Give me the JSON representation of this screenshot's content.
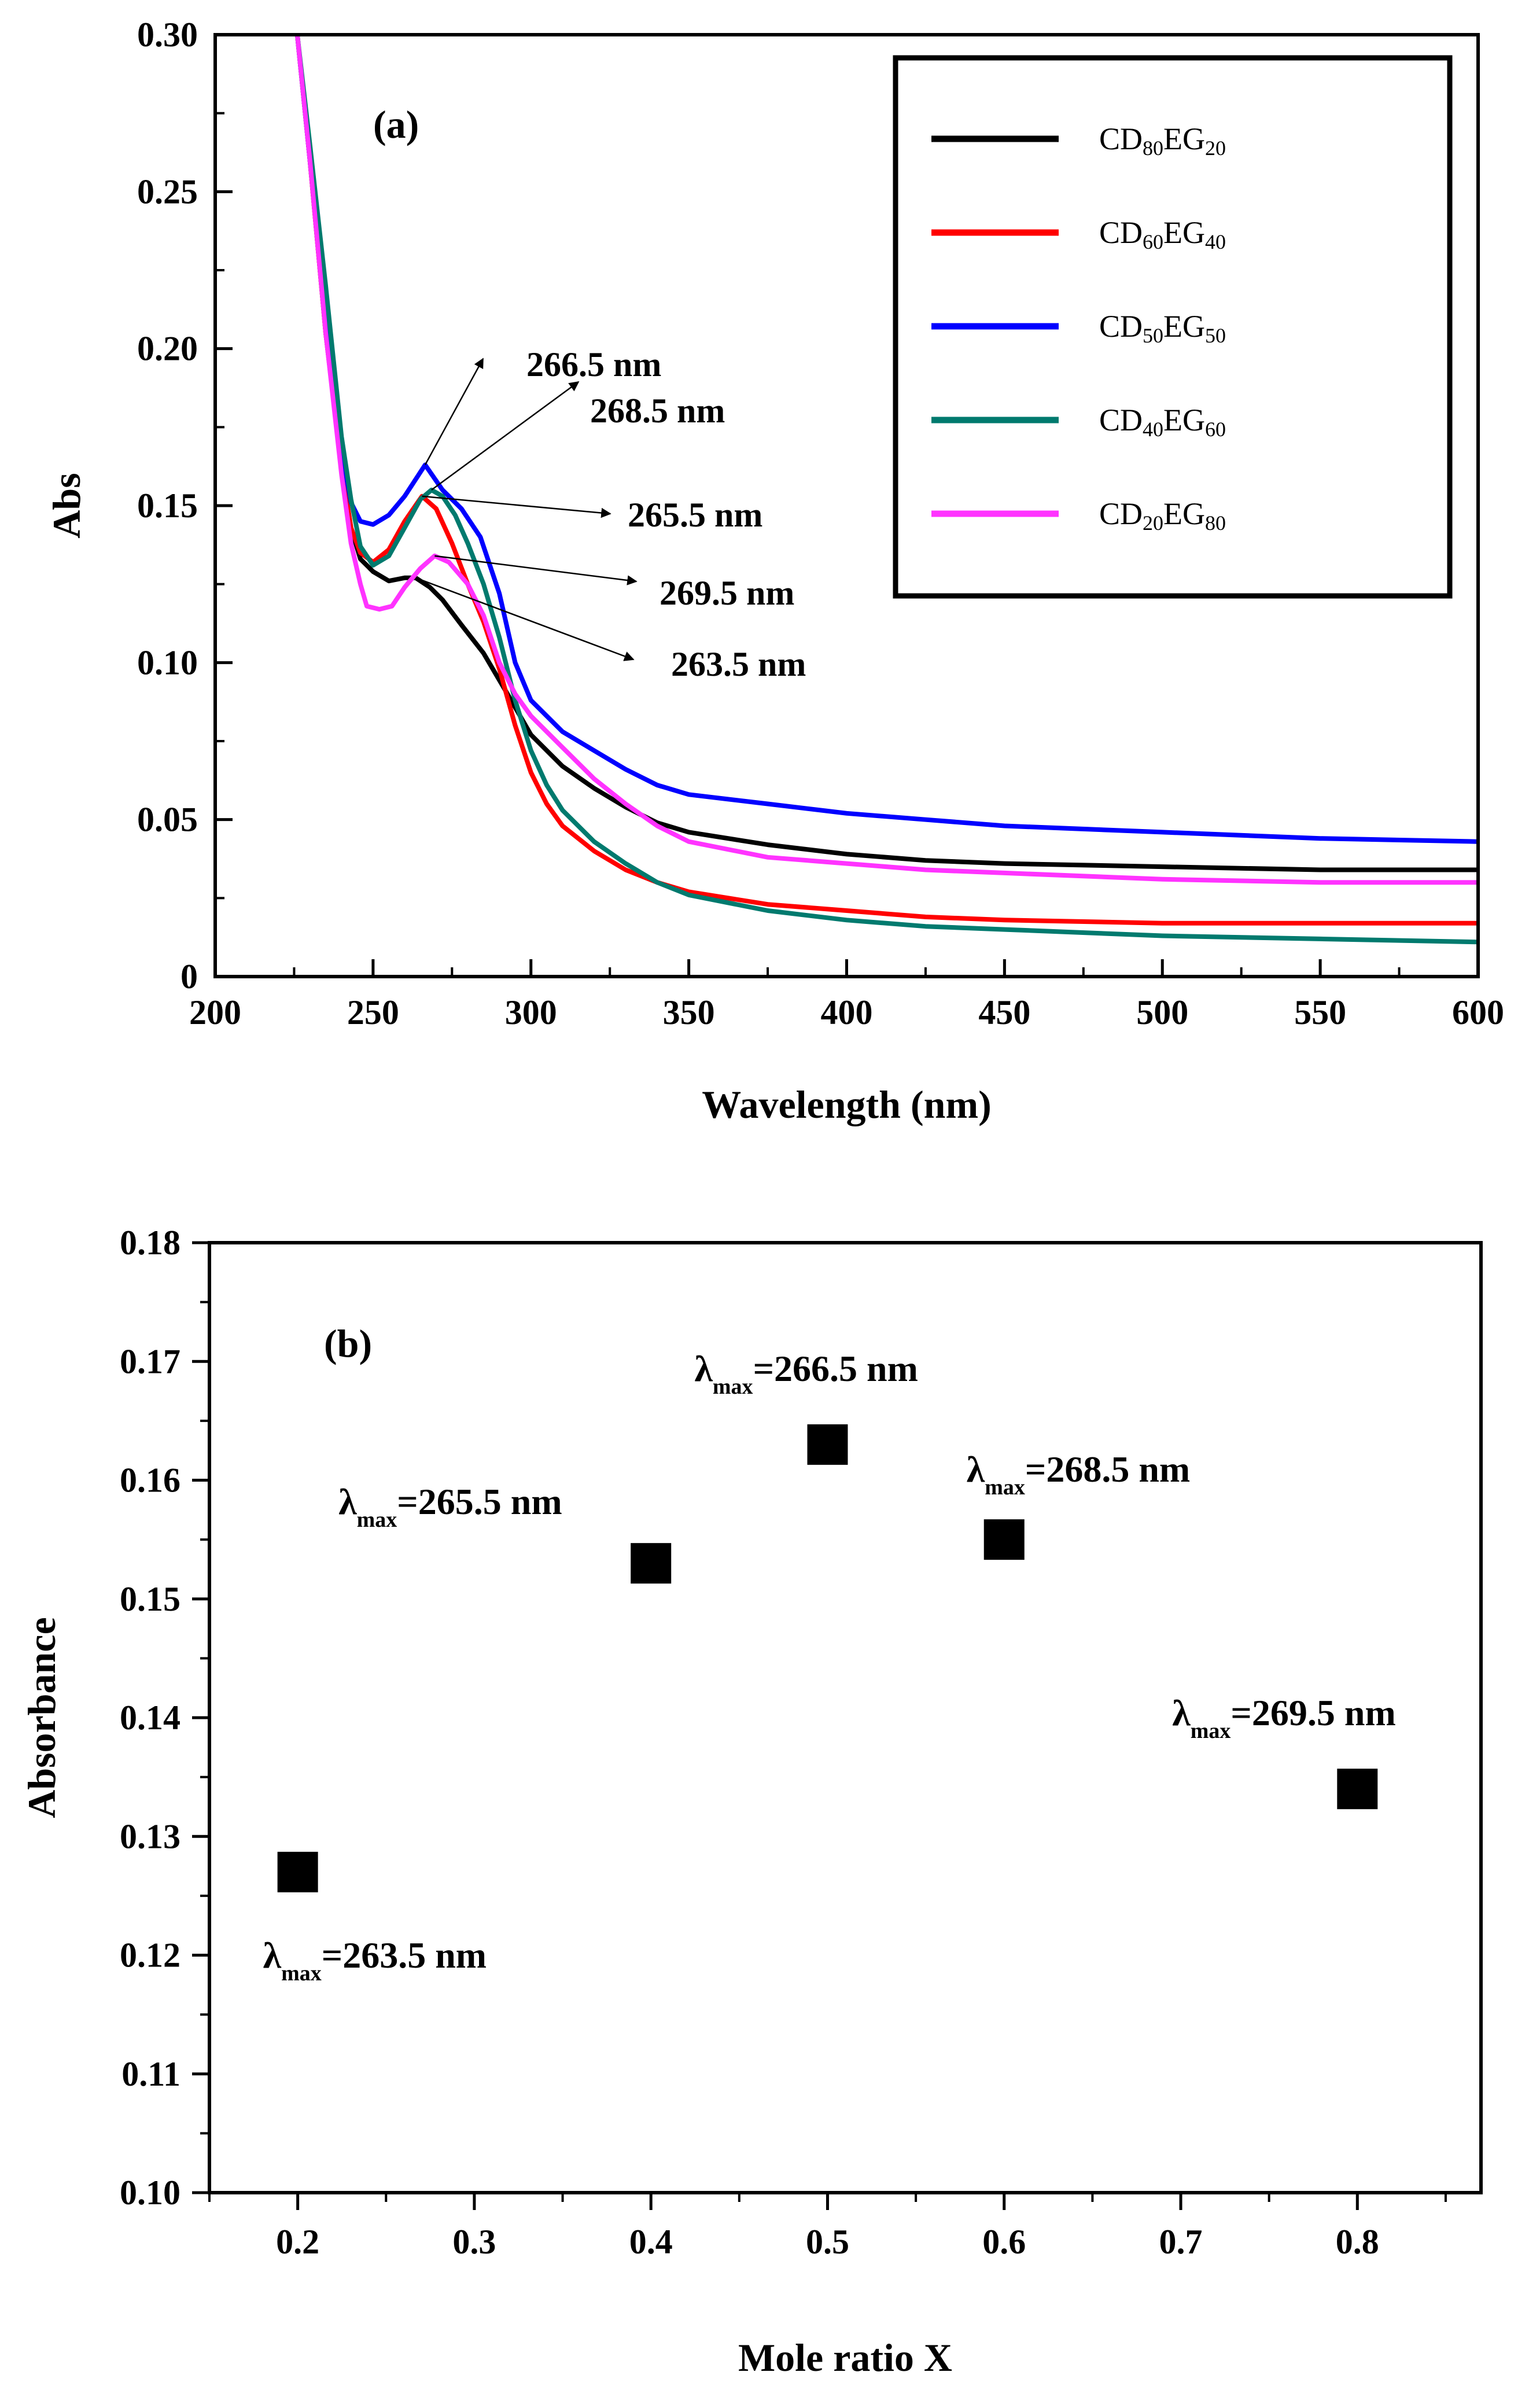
{
  "chart_data": [
    {
      "type": "line",
      "panel_label": "(a)",
      "xlabel": "Wavelength (nm)",
      "ylabel": "Abs",
      "xlim": [
        200,
        600
      ],
      "ylim": [
        0,
        0.3
      ],
      "x_ticks": [
        "200",
        "250",
        "300",
        "350",
        "400",
        "450",
        "500",
        "550",
        "600"
      ],
      "y_ticks": [
        "0",
        "0.05",
        "0.10",
        "0.15",
        "0.20",
        "0.25",
        "0.30"
      ],
      "grid": false,
      "legend_position": "top-right",
      "series": [
        {
          "name": "CD80EG20",
          "base": "CD",
          "sub1": "80",
          "mid": "EG",
          "sub2": "20",
          "color": "#000000",
          "x": [
            226,
            230,
            235,
            240,
            243,
            246,
            250,
            255,
            260,
            263.5,
            268,
            272,
            278,
            285,
            292,
            300,
            310,
            320,
            330,
            340,
            350,
            375,
            400,
            425,
            450,
            500,
            550,
            600
          ],
          "y": [
            0.3,
            0.26,
            0.205,
            0.162,
            0.143,
            0.133,
            0.129,
            0.126,
            0.127,
            0.127,
            0.124,
            0.12,
            0.112,
            0.103,
            0.091,
            0.077,
            0.067,
            0.06,
            0.054,
            0.049,
            0.046,
            0.042,
            0.039,
            0.037,
            0.036,
            0.035,
            0.034,
            0.034
          ]
        },
        {
          "name": "CD60EG40",
          "base": "CD",
          "sub1": "60",
          "mid": "EG",
          "sub2": "40",
          "color": "#ff0000",
          "x": [
            226,
            230,
            235,
            240,
            243,
            246,
            250,
            255,
            260,
            265.5,
            270,
            275,
            280,
            285,
            290,
            295,
            300,
            305,
            310,
            320,
            330,
            340,
            350,
            375,
            400,
            425,
            450,
            500,
            550,
            600
          ],
          "y": [
            0.3,
            0.26,
            0.205,
            0.162,
            0.143,
            0.135,
            0.132,
            0.136,
            0.145,
            0.153,
            0.149,
            0.138,
            0.125,
            0.113,
            0.098,
            0.08,
            0.065,
            0.055,
            0.048,
            0.04,
            0.034,
            0.03,
            0.027,
            0.023,
            0.021,
            0.019,
            0.018,
            0.017,
            0.017,
            0.017
          ]
        },
        {
          "name": "CD50EG50",
          "base": "CD",
          "sub1": "50",
          "mid": "EG",
          "sub2": "50",
          "color": "#0000ff",
          "x": [
            226,
            230,
            235,
            240,
            243,
            246,
            250,
            255,
            260,
            266.5,
            272,
            278,
            284,
            290,
            295,
            300,
            310,
            320,
            330,
            340,
            350,
            375,
            400,
            425,
            450,
            500,
            550,
            600
          ],
          "y": [
            0.3,
            0.26,
            0.21,
            0.168,
            0.151,
            0.145,
            0.144,
            0.147,
            0.153,
            0.163,
            0.155,
            0.149,
            0.14,
            0.122,
            0.1,
            0.088,
            0.078,
            0.072,
            0.066,
            0.061,
            0.058,
            0.055,
            0.052,
            0.05,
            0.048,
            0.046,
            0.044,
            0.043
          ]
        },
        {
          "name": "CD40EG60",
          "base": "CD",
          "sub1": "40",
          "mid": "EG",
          "sub2": "60",
          "color": "#007a6e",
          "x": [
            226,
            230,
            235,
            240,
            243,
            246,
            250,
            255,
            260,
            265,
            268.5,
            272,
            276,
            280,
            285,
            290,
            295,
            300,
            305,
            310,
            320,
            330,
            340,
            350,
            375,
            400,
            425,
            450,
            500,
            550,
            600
          ],
          "y": [
            0.3,
            0.265,
            0.22,
            0.172,
            0.152,
            0.137,
            0.131,
            0.134,
            0.143,
            0.152,
            0.155,
            0.153,
            0.147,
            0.138,
            0.125,
            0.108,
            0.088,
            0.072,
            0.061,
            0.053,
            0.043,
            0.036,
            0.03,
            0.026,
            0.021,
            0.018,
            0.016,
            0.015,
            0.013,
            0.012,
            0.011
          ]
        },
        {
          "name": "CD20EG80",
          "base": "CD",
          "sub1": "20",
          "mid": "EG",
          "sub2": "80",
          "color": "#ff33ff",
          "x": [
            226,
            230,
            235,
            240,
            243,
            246,
            248,
            252,
            256,
            260,
            265,
            269.5,
            274,
            280,
            285,
            290,
            295,
            300,
            310,
            320,
            330,
            340,
            350,
            375,
            400,
            425,
            450,
            500,
            550,
            600
          ],
          "y": [
            0.3,
            0.26,
            0.205,
            0.16,
            0.138,
            0.125,
            0.118,
            0.117,
            0.118,
            0.124,
            0.13,
            0.134,
            0.132,
            0.125,
            0.115,
            0.1,
            0.09,
            0.083,
            0.073,
            0.063,
            0.055,
            0.048,
            0.043,
            0.038,
            0.036,
            0.034,
            0.033,
            0.031,
            0.03,
            0.03
          ]
        }
      ],
      "annotations": [
        {
          "text": "266.5 nm",
          "x": 266.5,
          "y": 0.163
        },
        {
          "text": "268.5 nm",
          "x": 268.5,
          "y": 0.155
        },
        {
          "text": "265.5 nm",
          "x": 265.5,
          "y": 0.153
        },
        {
          "text": "269.5 nm",
          "x": 269.5,
          "y": 0.134
        },
        {
          "text": "263.5 nm",
          "x": 263.5,
          "y": 0.127
        }
      ]
    },
    {
      "type": "scatter",
      "panel_label": "(b)",
      "xlabel": "Mole ratio X",
      "ylabel": "Absorbance",
      "xlim": [
        0.15,
        0.87
      ],
      "ylim": [
        0.1,
        0.18
      ],
      "x_ticks": [
        "0.2",
        "0.3",
        "0.4",
        "0.5",
        "0.6",
        "0.7",
        "0.8"
      ],
      "y_ticks": [
        "0.10",
        "0.11",
        "0.12",
        "0.13",
        "0.14",
        "0.15",
        "0.16",
        "0.17",
        "0.18"
      ],
      "grid": false,
      "marker": "square",
      "color": "#000000",
      "points": [
        {
          "x": 0.2,
          "y": 0.127,
          "label_prefix": "λ",
          "label_sub": "max",
          "label_value": "=263.5 nm"
        },
        {
          "x": 0.4,
          "y": 0.153,
          "label_prefix": "λ",
          "label_sub": "max",
          "label_value": "=265.5 nm"
        },
        {
          "x": 0.5,
          "y": 0.163,
          "label_prefix": "λ",
          "label_sub": "max",
          "label_value": "=266.5 nm"
        },
        {
          "x": 0.6,
          "y": 0.155,
          "label_prefix": "λ",
          "label_sub": "max",
          "label_value": "=268.5 nm"
        },
        {
          "x": 0.8,
          "y": 0.134,
          "label_prefix": "λ",
          "label_sub": "max",
          "label_value": "=269.5 nm"
        }
      ]
    }
  ]
}
